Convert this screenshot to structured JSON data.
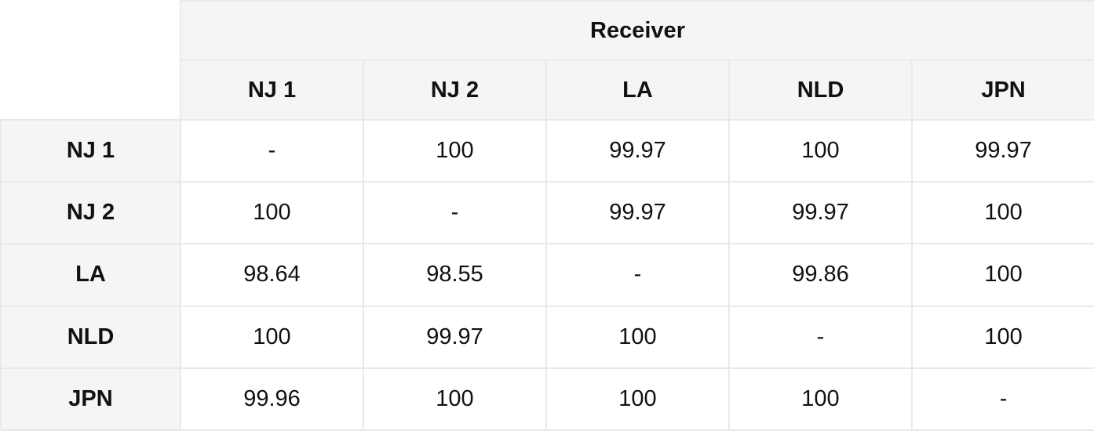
{
  "table": {
    "group_header": "Receiver",
    "columns": [
      "NJ 1",
      "NJ 2",
      "LA",
      "NLD",
      "JPN"
    ],
    "rows": [
      {
        "label": "NJ 1",
        "cells": [
          "-",
          "100",
          "99.97",
          "100",
          "99.97"
        ]
      },
      {
        "label": "NJ 2",
        "cells": [
          "100",
          "-",
          "99.97",
          "99.97",
          "100"
        ]
      },
      {
        "label": "LA",
        "cells": [
          "98.64",
          "98.55",
          "-",
          "99.86",
          "100"
        ]
      },
      {
        "label": "NLD",
        "cells": [
          "100",
          "99.97",
          "100",
          "-",
          "100"
        ]
      },
      {
        "label": "JPN",
        "cells": [
          "99.96",
          "100",
          "100",
          "100",
          "-"
        ]
      }
    ]
  },
  "colors": {
    "header_bg": "#f5f5f5",
    "cell_bg": "#ffffff",
    "border": "#e9e9e9",
    "text": "#111111"
  }
}
